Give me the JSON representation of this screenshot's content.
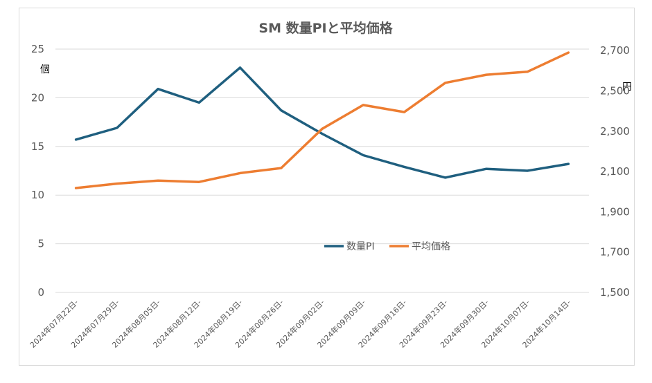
{
  "chart_data": {
    "type": "line",
    "title": "SM  数量PIと平均価格",
    "y_left_unit": "個",
    "y_right_unit": "円",
    "categories": [
      "2024年07月22日-",
      "2024年07月29日-",
      "2024年08月05日-",
      "2024年08月12日-",
      "2024年08月19日-",
      "2024年08月26日-",
      "2024年09月02日-",
      "2024年09月09日-",
      "2024年09月16日-",
      "2024年09月23日-",
      "2024年09月30日-",
      "2024年10月07日-",
      "2024年10月14日-"
    ],
    "y_left": {
      "min": 0,
      "max": 25,
      "ticks": [
        "0",
        "5",
        "10",
        "15",
        "20",
        "25"
      ]
    },
    "y_right": {
      "min": 1500,
      "max": 2800,
      "ticks": [
        "1,500",
        "1,700",
        "1,900",
        "2,100",
        "2,300",
        "2,500",
        "2,700"
      ]
    },
    "grid": true,
    "legend_position": "center",
    "series": [
      {
        "name": "数量PI",
        "axis": "left",
        "color": "#1f5f7f",
        "values": [
          15.7,
          16.9,
          20.9,
          19.5,
          23.1,
          18.7,
          16.3,
          14.1,
          12.9,
          11.8,
          12.7,
          12.5,
          13.2
        ]
      },
      {
        "name": "平均価格",
        "axis": "right",
        "color": "#ed7d31",
        "values": [
          2018,
          2040,
          2055,
          2048,
          2092,
          2117,
          2312,
          2430,
          2395,
          2540,
          2580,
          2595,
          2690
        ]
      }
    ]
  }
}
